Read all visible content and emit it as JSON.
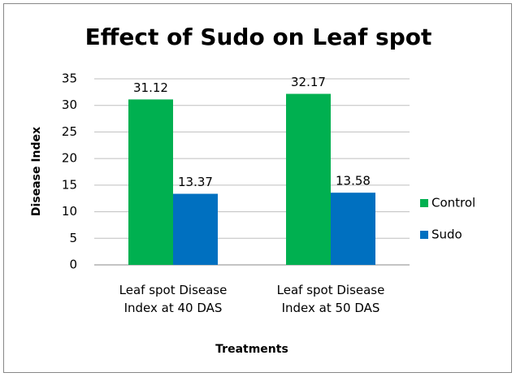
{
  "chart_data": {
    "type": "bar",
    "title": "Effect of Sudo on Leaf spot",
    "x_label": "Treatments",
    "y_label": "Disease Index",
    "categories": [
      "Leaf spot Disease Index at 40 DAS",
      "Leaf spot Disease Index at 50 DAS"
    ],
    "series": [
      {
        "name": "Control",
        "color": "#00b050",
        "values": [
          31.12,
          32.17
        ]
      },
      {
        "name": "Sudo",
        "color": "#0070c0",
        "values": [
          13.37,
          13.58
        ]
      }
    ],
    "ylim": [
      0,
      35
    ],
    "yticks": [
      0,
      5,
      10,
      15,
      20,
      25,
      30,
      35
    ],
    "grid": true,
    "legend": "right"
  }
}
